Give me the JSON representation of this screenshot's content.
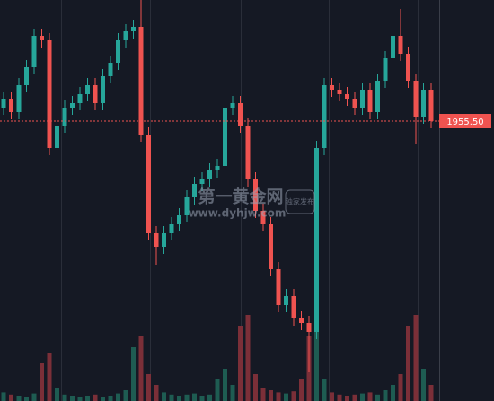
{
  "chart_data": {
    "type": "candlestick",
    "up_color": "#26a69a",
    "down_color": "#ef5350",
    "volume_up_color": "#1e5c52",
    "volume_down_color": "#7b2f38",
    "ylim": [
      1924.3,
      1969
    ],
    "vlim": [
      0,
      100
    ],
    "last_price": {
      "value": 1955.5,
      "label": "1955.50"
    },
    "open": [
      1957.0,
      1958.0,
      1956.5,
      1959.5,
      1961.5,
      1965.0,
      1964.5,
      1952.5,
      1955.0,
      1957.0,
      1957.5,
      1958.5,
      1959.5,
      1957.5,
      1960.5,
      1962.0,
      1964.5,
      1965.5,
      1966.0,
      1954.0,
      1943.0,
      1941.5,
      1943.0,
      1944.0,
      1945.0,
      1947.0,
      1948.5,
      1949.0,
      1950.0,
      1950.5,
      1957.0,
      1957.5,
      1955.0,
      1949.0,
      1945.5,
      1944.0,
      1939.0,
      1935.0,
      1936.0,
      1933.5,
      1933.0,
      1932.0,
      1952.5,
      1959.5,
      1959.0,
      1958.5,
      1958.0,
      1957.0,
      1959.0,
      1956.5,
      1960.0,
      1962.5,
      1965.0,
      1963.0,
      1960.0,
      1956.0,
      1959.0
    ],
    "high": [
      1958.8,
      1958.8,
      1960.3,
      1962.3,
      1965.8,
      1965.8,
      1965.3,
      1955.8,
      1957.8,
      1958.3,
      1959.3,
      1960.3,
      1960.3,
      1961.3,
      1962.8,
      1965.3,
      1966.3,
      1966.8,
      1969.0,
      1954.8,
      1943.8,
      1943.8,
      1944.8,
      1945.8,
      1947.8,
      1949.3,
      1949.8,
      1950.8,
      1951.3,
      1960.0,
      1958.3,
      1958.3,
      1955.8,
      1949.8,
      1946.3,
      1944.8,
      1939.8,
      1936.8,
      1936.8,
      1934.3,
      1933.8,
      1953.3,
      1960.3,
      1960.3,
      1959.8,
      1959.3,
      1958.8,
      1959.8,
      1959.8,
      1960.8,
      1963.3,
      1965.8,
      1968.0,
      1963.8,
      1960.8,
      1959.8,
      1959.8
    ],
    "low": [
      1956.2,
      1955.7,
      1955.7,
      1958.7,
      1960.7,
      1963.7,
      1951.7,
      1951.7,
      1954.2,
      1956.2,
      1956.7,
      1957.7,
      1956.7,
      1956.7,
      1959.7,
      1961.2,
      1963.7,
      1964.7,
      1953.2,
      1942.2,
      1939.5,
      1940.7,
      1942.2,
      1943.2,
      1944.2,
      1946.2,
      1947.7,
      1948.2,
      1949.2,
      1949.7,
      1956.2,
      1954.2,
      1948.2,
      1944.7,
      1943.2,
      1938.2,
      1934.2,
      1934.2,
      1932.7,
      1932.2,
      1927.5,
      1931.2,
      1951.7,
      1958.2,
      1957.7,
      1957.2,
      1956.2,
      1956.2,
      1955.7,
      1955.7,
      1959.2,
      1961.7,
      1962.2,
      1959.2,
      1953.0,
      1955.2,
      1954.7
    ],
    "close": [
      1958.0,
      1956.5,
      1959.5,
      1961.5,
      1965.0,
      1964.5,
      1952.5,
      1955.0,
      1957.0,
      1957.5,
      1958.5,
      1959.5,
      1957.5,
      1960.5,
      1962.0,
      1964.5,
      1965.5,
      1966.0,
      1954.0,
      1943.0,
      1941.5,
      1943.0,
      1944.0,
      1945.0,
      1947.0,
      1948.5,
      1949.0,
      1950.0,
      1950.5,
      1957.0,
      1957.5,
      1955.0,
      1949.0,
      1945.5,
      1944.0,
      1939.0,
      1935.0,
      1936.0,
      1933.5,
      1933.0,
      1932.0,
      1952.5,
      1959.5,
      1959.0,
      1958.5,
      1958.0,
      1957.0,
      1959.0,
      1956.5,
      1960.0,
      1962.5,
      1965.0,
      1963.0,
      1960.0,
      1956.0,
      1959.0,
      1955.5
    ],
    "volume": [
      8,
      6,
      5,
      4,
      7,
      35,
      45,
      12,
      6,
      5,
      4,
      5,
      6,
      4,
      5,
      7,
      10,
      50,
      60,
      25,
      15,
      8,
      6,
      5,
      6,
      7,
      5,
      6,
      20,
      30,
      15,
      70,
      80,
      25,
      12,
      10,
      8,
      7,
      9,
      20,
      60,
      75,
      20,
      8,
      6,
      5,
      6,
      7,
      8,
      6,
      10,
      15,
      25,
      70,
      80,
      30,
      15
    ]
  },
  "watermark": {
    "name": "第一黄金网",
    "badge": "独家发布",
    "url": "www.dyhjw.com"
  }
}
